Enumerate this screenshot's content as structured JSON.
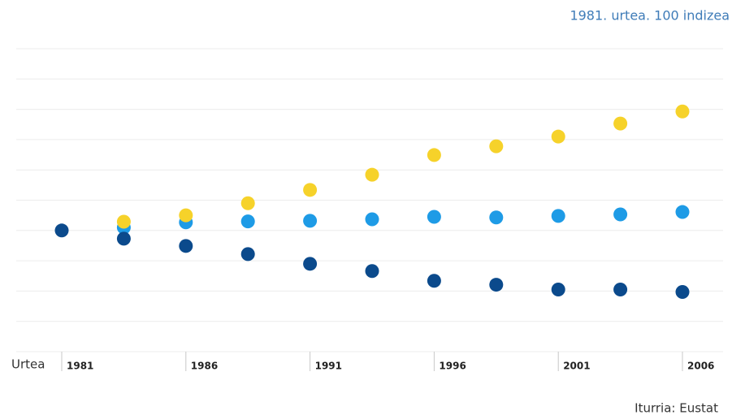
{
  "chart_data": {
    "type": "scatter",
    "subtitle": "1981. urtea. 100 indizea",
    "x_label": "Urtea",
    "source": "Iturria: Eustat",
    "xlim": [
      1981,
      2006
    ],
    "xticks": [
      1981,
      1986,
      1991,
      1996,
      2001,
      2006
    ],
    "ylim": [
      60,
      160
    ],
    "yticks": [
      60,
      70,
      80,
      90,
      100,
      110,
      120,
      130,
      140,
      150,
      160
    ],
    "grid": true,
    "series": [
      {
        "color": "#1e9be6",
        "x": [
          1983.5,
          1986,
          1988.5,
          1991,
          1993.5,
          1996,
          1998.5,
          2001,
          2003.5,
          2006
        ],
        "values": [
          101,
          102.7,
          103,
          103.2,
          103.7,
          104.5,
          104.3,
          104.8,
          105.3,
          106.1
        ]
      },
      {
        "color": "#f6d22a",
        "x": [
          1983.5,
          1986,
          1988.5,
          1991,
          1993.5,
          1996,
          1998.5,
          2001,
          2003.5,
          2006
        ],
        "values": [
          102.9,
          105,
          109,
          113.4,
          118.4,
          124.9,
          127.8,
          131,
          135.3,
          139.3
        ]
      },
      {
        "color": "#0b4a8c",
        "x": [
          1981,
          1983.5,
          1986,
          1988.5,
          1991,
          1993.5,
          1996,
          1998.5,
          2001,
          2003.5,
          2006
        ],
        "values": [
          100,
          97.3,
          94.9,
          92.2,
          89,
          86.6,
          83.4,
          82.1,
          80.5,
          80.5,
          79.7
        ]
      }
    ]
  }
}
